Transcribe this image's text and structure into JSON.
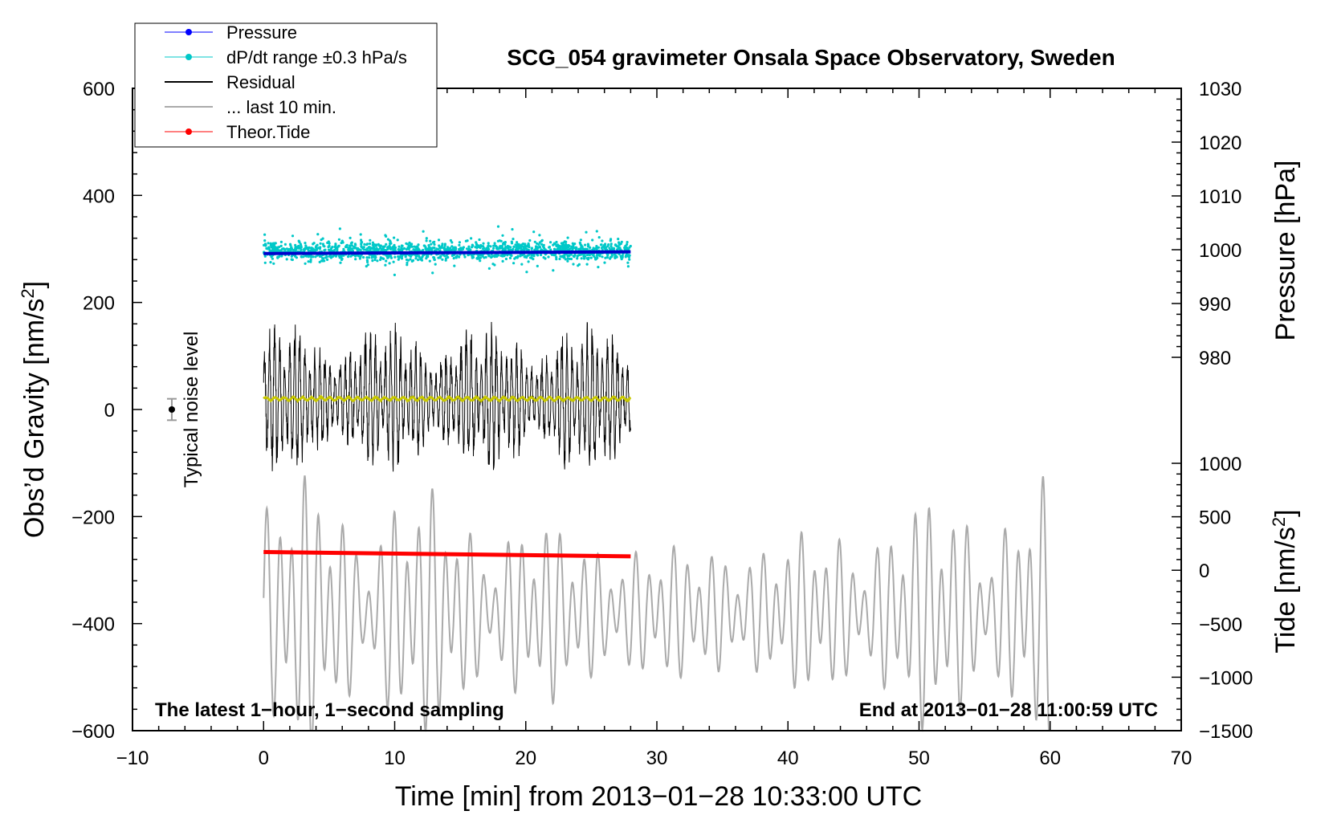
{
  "chart_data": {
    "type": "line",
    "title": "SCG_054 gravimeter Onsala Space Observatory, Sweden",
    "xlabel": "Time [min] from 2013−01−28 10:33:00 UTC",
    "ylabel_left": "Obs’d Gravity [nm/s",
    "ylabel_left_sup": "2",
    "ylabel_left_end": "]",
    "ylabel_right_pressure": "Pressure [hPa]",
    "ylabel_right_tide": "Tide [nm/s",
    "ylabel_right_tide_sup": "2",
    "ylabel_right_tide_end": "]",
    "xlim": [
      -10,
      70
    ],
    "ylim_left": [
      -600,
      600
    ],
    "pressure_range": [
      980,
      1030
    ],
    "tide_range": [
      -1500,
      1000
    ],
    "x_ticks": [
      "−10",
      "0",
      "10",
      "20",
      "30",
      "40",
      "50",
      "60",
      "70"
    ],
    "y_left_ticks": [
      "600",
      "400",
      "200",
      "0",
      "−200",
      "−400",
      "−600"
    ],
    "y_pressure_ticks": [
      "1030",
      "1020",
      "1010",
      "1000",
      "990",
      "980"
    ],
    "y_tide_ticks": [
      "1000",
      "500",
      "0",
      "−500",
      "−1000",
      "−1500"
    ],
    "legend": [
      {
        "label": "Pressure",
        "color": "#0000ff",
        "marker": "dot"
      },
      {
        "label": "dP/dt range ±0.3 hPa/s",
        "color": "#00c8c8",
        "marker": "dot"
      },
      {
        "label": "Residual",
        "color": "#000000",
        "marker": "line"
      },
      {
        "label": "... last 10 min.",
        "color": "#aaaaaa",
        "marker": "line"
      },
      {
        "label": "Theor.Tide",
        "color": "#ff0000",
        "marker": "dot"
      }
    ],
    "noise_label": "Typical noise level",
    "noise_marker": {
      "x": -7,
      "y": 0,
      "err": 20
    },
    "note_left": "The latest 1−hour, 1−second sampling",
    "note_right": "End at 2013−01−28 11:00:59 UTC",
    "series": [
      {
        "name": "Pressure",
        "color": "#0000cc",
        "x_range": [
          0,
          28
        ],
        "pressure_hpa": [
          999.3,
          999.6
        ]
      },
      {
        "name": "dP/dt range ±0.3 hPa/s",
        "color": "#00c8c8",
        "x_range": [
          0,
          28
        ],
        "pressure_center_hpa": 999.8,
        "spread_hpa": 2.5
      },
      {
        "name": "Residual",
        "color": "#000000",
        "x_range": [
          0,
          28
        ],
        "center": 20,
        "amplitude": 150
      },
      {
        "name": "Residual smoothed",
        "color": "#c8c800",
        "x_range": [
          0,
          28
        ],
        "value": 20
      },
      {
        "name": "... last 10 min.",
        "color": "#aaaaaa",
        "x_range": [
          0,
          60
        ],
        "tide_center": -400,
        "amplitude": 1200
      },
      {
        "name": "Theor.Tide",
        "color": "#ff0000",
        "x_range": [
          0,
          28
        ],
        "tide_values": [
          170,
          130
        ]
      }
    ]
  }
}
